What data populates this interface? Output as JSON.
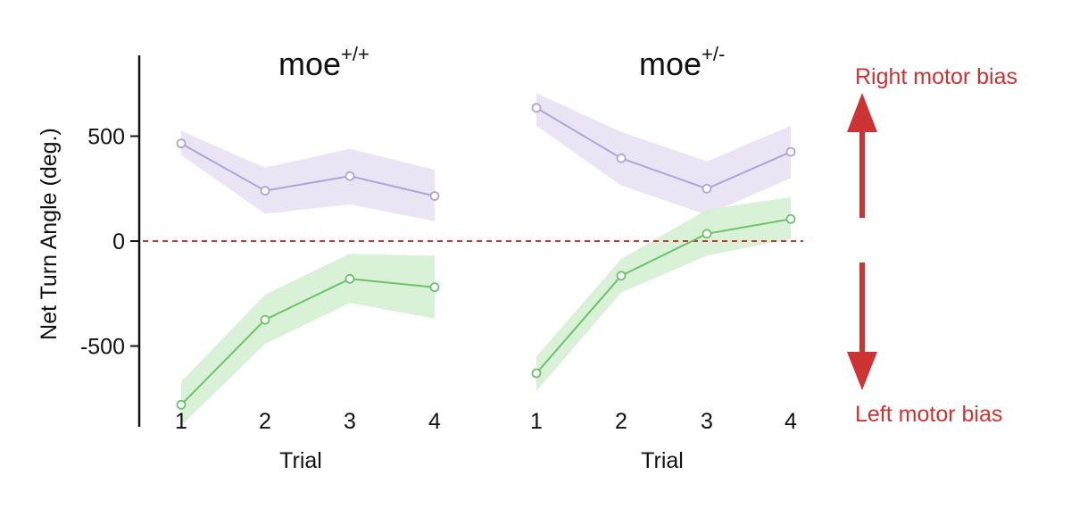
{
  "chart_data": {
    "type": "line",
    "ylabel": "Net Turn Angle (deg.)",
    "yticks": [
      500,
      0,
      -500
    ],
    "ylim": [
      -880,
      900
    ],
    "reference_line": {
      "y": 0,
      "style": "dashed",
      "color": "#cc3333"
    },
    "colors": {
      "purple_line": "#b3a3d6",
      "purple_band": "#e8e1f3",
      "green_line": "#6cc36c",
      "green_band": "#d5efd2",
      "accent": "#cc3333"
    },
    "panels": [
      {
        "title": "moe",
        "title_sup": "+/+",
        "xlabel": "Trial",
        "categories": [
          "1",
          "2",
          "3",
          "4"
        ],
        "series": [
          {
            "color_key": "purple",
            "values": [
              465,
              240,
              310,
              215
            ],
            "band_low": [
              410,
              130,
              175,
              95
            ],
            "band_high": [
              525,
              350,
              440,
              340
            ]
          },
          {
            "color_key": "green",
            "values": [
              -780,
              -375,
              -180,
              -220
            ],
            "band_low": [
              -880,
              -490,
              -295,
              -370
            ],
            "band_high": [
              -670,
              -255,
              -60,
              -70
            ]
          }
        ]
      },
      {
        "title": "moe",
        "title_sup": "+/-",
        "xlabel": "Trial",
        "categories": [
          "1",
          "2",
          "3",
          "4"
        ],
        "series": [
          {
            "color_key": "purple",
            "values": [
              635,
              395,
              250,
              425
            ],
            "band_low": [
              550,
              265,
              125,
              300
            ],
            "band_high": [
              705,
              520,
              380,
              550
            ]
          },
          {
            "color_key": "green",
            "values": [
              -630,
              -165,
              35,
              105
            ],
            "band_low": [
              -715,
              -245,
              -70,
              10
            ],
            "band_high": [
              -550,
              -85,
              150,
              210
            ]
          }
        ]
      }
    ],
    "annotations": {
      "up_label": "Right motor bias",
      "down_label": "Left motor bias"
    }
  }
}
